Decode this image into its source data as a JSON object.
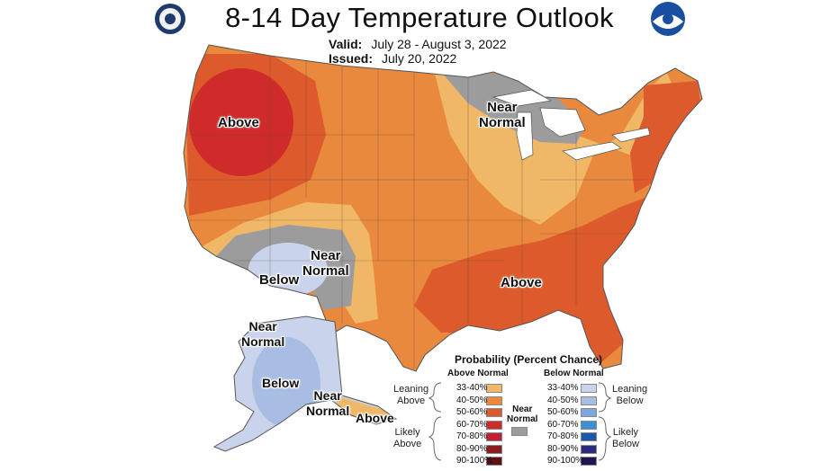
{
  "header": {
    "title": "8-14 Day Temperature Outlook",
    "valid_label": "Valid:",
    "valid_value": "July 28 - August 3, 2022",
    "issued_label": "Issued:",
    "issued_value": "July 20, 2022"
  },
  "logos": {
    "left": "department-of-commerce-seal",
    "right": "noaa-logo"
  },
  "regions": {
    "west_above": "Above",
    "great_lakes_near": "Near\nNormal",
    "southwest_below": "Below",
    "southwest_near": "Near\nNormal",
    "southeast_above": "Above",
    "alaska_near_west": "Near\nNormal",
    "alaska_below": "Below",
    "alaska_near_south": "Near\nNormal",
    "alaska_panhandle_above": "Above"
  },
  "legend": {
    "title": "Probability (Percent Chance)",
    "above_header": "Above Normal",
    "below_header": "Below Normal",
    "near_label": "Near\nNormal",
    "leaning_above": "Leaning\nAbove",
    "likely_above": "Likely\nAbove",
    "leaning_below": "Leaning\nBelow",
    "likely_below": "Likely\nBelow",
    "above_bins": [
      {
        "label": "33-40%",
        "color": "#f0b866"
      },
      {
        "label": "40-50%",
        "color": "#e8893e"
      },
      {
        "label": "50-60%",
        "color": "#dd5a2c"
      },
      {
        "label": "60-70%",
        "color": "#cf2b2b"
      },
      {
        "label": "70-80%",
        "color": "#c01f35"
      },
      {
        "label": "80-90%",
        "color": "#8c1c22"
      },
      {
        "label": "90-100%",
        "color": "#5e1216"
      }
    ],
    "below_bins": [
      {
        "label": "33-40%",
        "color": "#c9d4ec"
      },
      {
        "label": "40-50%",
        "color": "#a7bde3"
      },
      {
        "label": "50-60%",
        "color": "#7fa6dd"
      },
      {
        "label": "60-70%",
        "color": "#3d8fd3"
      },
      {
        "label": "70-80%",
        "color": "#1a5aa9"
      },
      {
        "label": "80-90%",
        "color": "#2b2a7d"
      },
      {
        "label": "90-100%",
        "color": "#1e1650"
      }
    ],
    "near_color": "#9c9c9c"
  },
  "colors": {
    "above_33_40": "#f0b866",
    "above_40_50": "#e8893e",
    "above_50_60": "#dd5a2c",
    "above_60_70": "#cf2b2b",
    "below_33_40": "#c9d4ec",
    "below_40_50": "#a7bde3",
    "near_normal": "#9c9c9c"
  }
}
